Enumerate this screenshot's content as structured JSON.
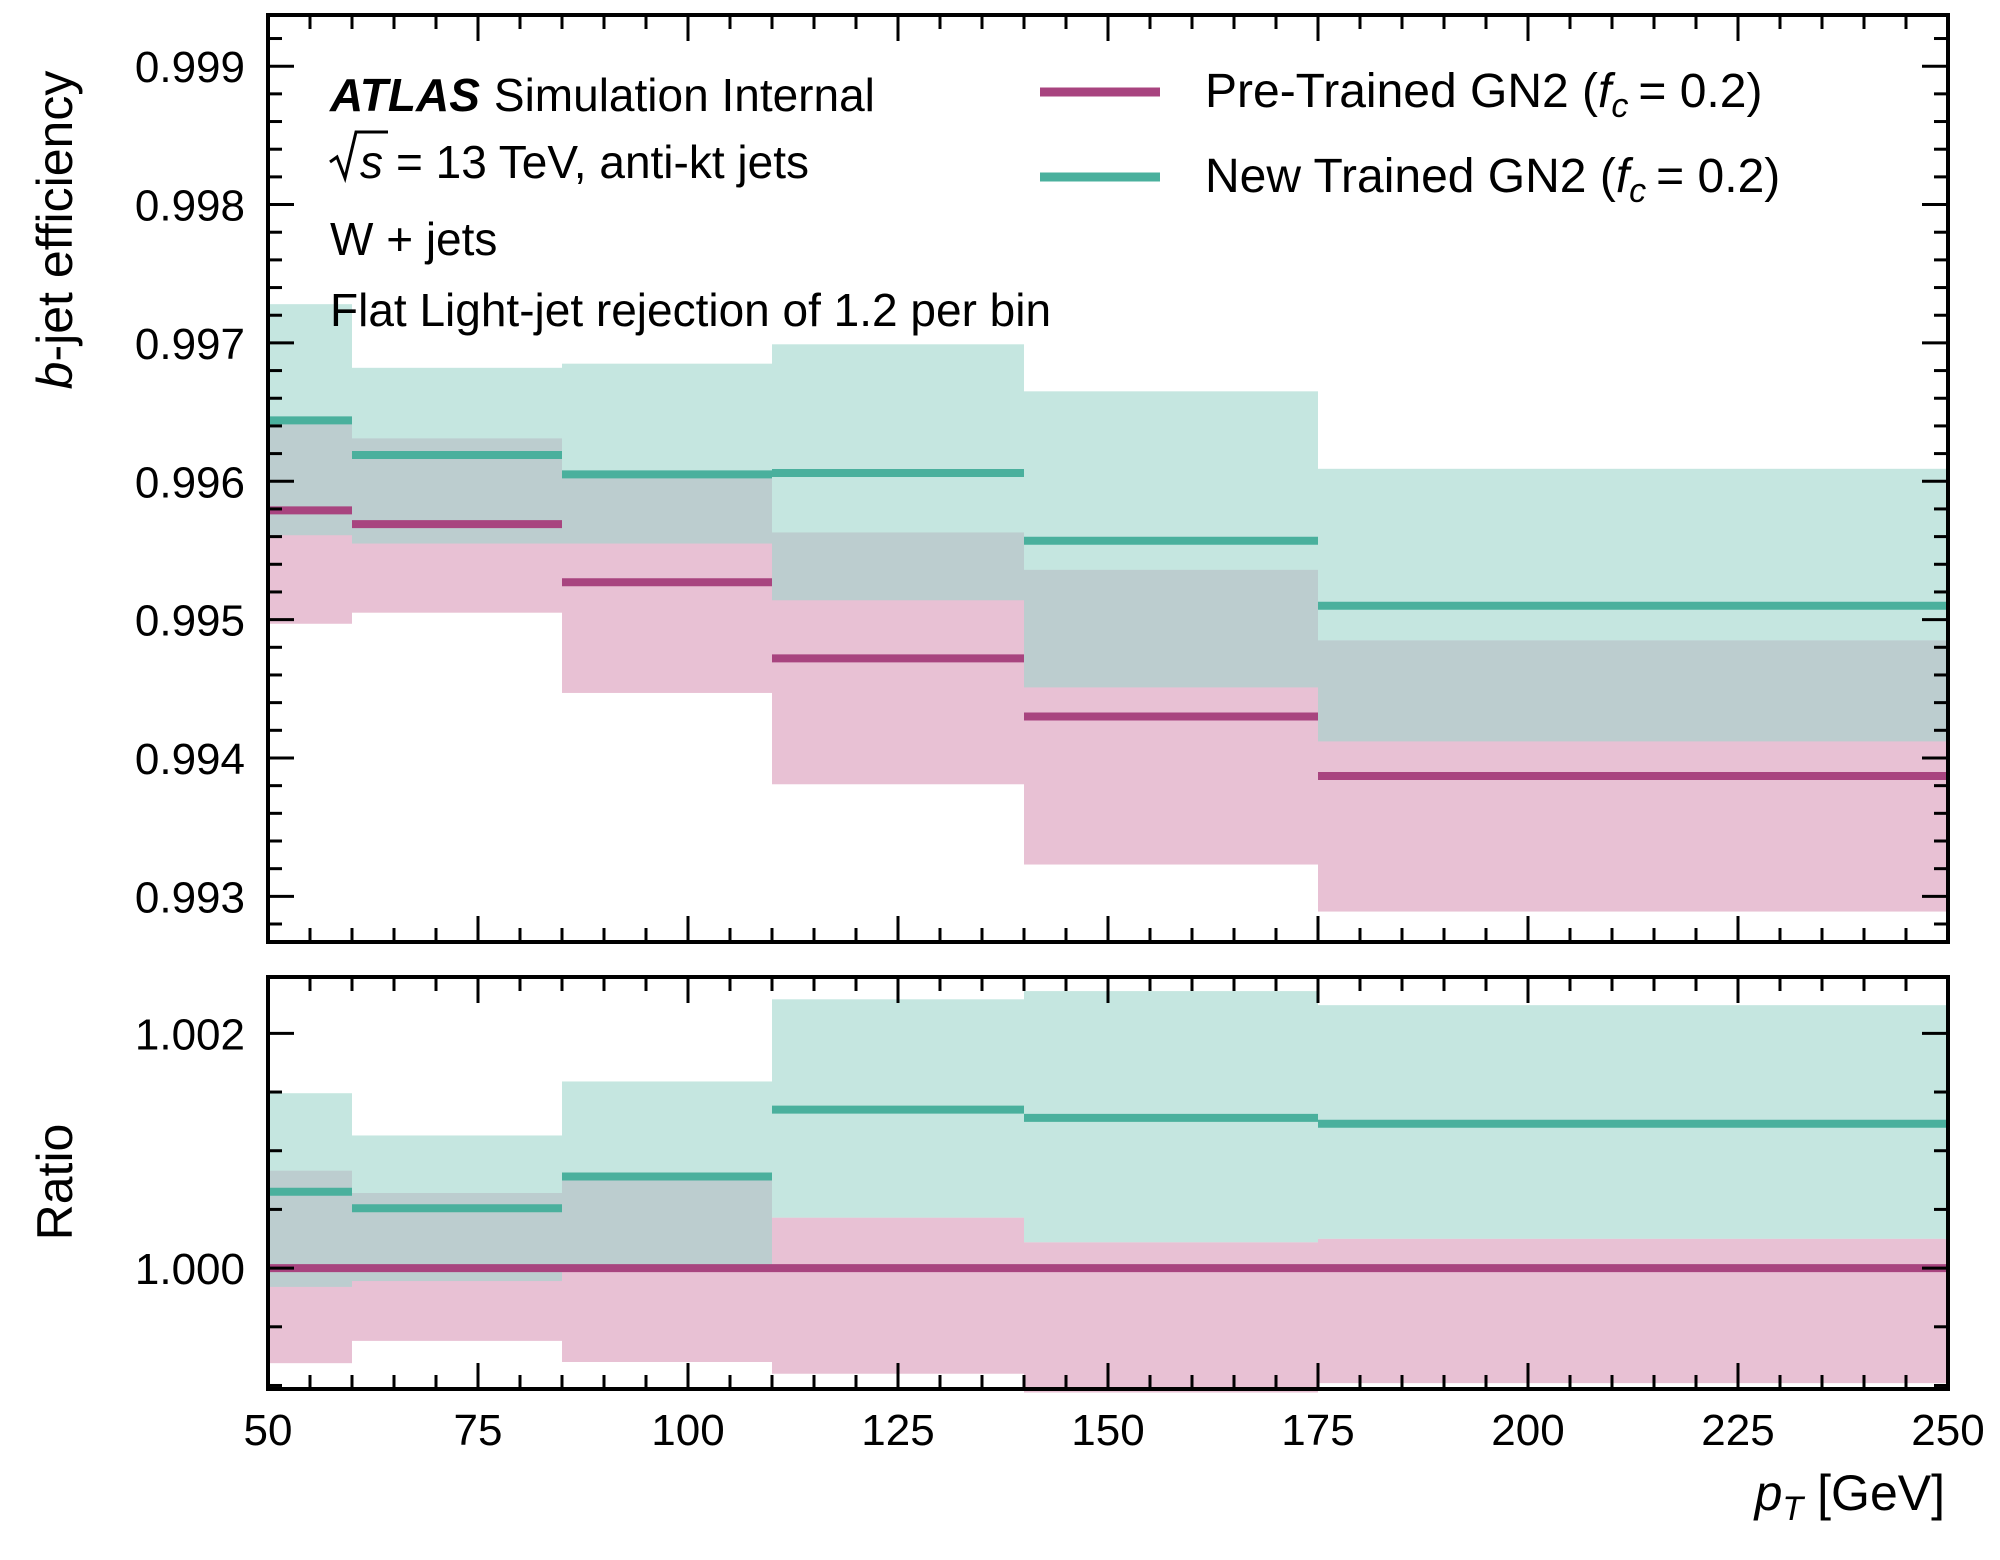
{
  "chart_data": {
    "type": "line",
    "style": "step",
    "bin_edges": [
      50,
      60,
      85,
      110,
      140,
      175,
      250
    ],
    "xlabel_italic": "p",
    "xlabel_sub": "T",
    "xlabel_unit": "[GeV]",
    "xlim": [
      50,
      250
    ],
    "xticks": [
      "50",
      "75",
      "100",
      "125",
      "150",
      "175",
      "200",
      "225",
      "250"
    ],
    "atlas_label": "ATLAS",
    "atlas_suffix": "Simulation Internal",
    "energy_label": "= 13 TeV, anti-kt jets",
    "sample_label": "W + jets",
    "rejection_label": "Flat Light-jet rejection of 1.2 per bin",
    "series": [
      {
        "name": "Pre-Trained GN2",
        "name_suffix": "= 0.2)",
        "color": "#a8447f",
        "band_color": "#d997b8",
        "values": [
          0.99579,
          0.99569,
          0.99527,
          0.99472,
          0.9943,
          0.99387
        ],
        "band_low": [
          0.99497,
          0.99505,
          0.99447,
          0.99381,
          0.99323,
          0.99289
        ],
        "band_high": [
          0.99646,
          0.99631,
          0.99605,
          0.99563,
          0.99536,
          0.99485
        ],
        "ratio": [
          1.0,
          1.0,
          1.0,
          1.0,
          1.0,
          1.0
        ],
        "ratio_low": [
          0.99919,
          0.99938,
          0.9992,
          0.9991,
          0.99894,
          0.99902
        ],
        "ratio_high": [
          1.00083,
          1.00064,
          1.00075,
          1.00043,
          1.00022,
          1.00025
        ]
      },
      {
        "name": "New Trained GN2",
        "name_suffix": "= 0.2)",
        "color": "#4ab09d",
        "band_color": "#9fd6cb",
        "values": [
          0.99644,
          0.99619,
          0.99605,
          0.99606,
          0.99557,
          0.9951
        ],
        "band_low": [
          0.99561,
          0.99555,
          0.99555,
          0.99514,
          0.99451,
          0.99412
        ],
        "band_high": [
          0.99728,
          0.99682,
          0.99685,
          0.99699,
          0.99665,
          0.99609
        ],
        "ratio": [
          1.00065,
          1.00051,
          1.00078,
          1.00135,
          1.00128,
          1.00123
        ],
        "ratio_low": [
          0.99984,
          0.99989,
          1.0,
          1.00043,
          1.00022,
          1.00025
        ],
        "ratio_high": [
          1.00149,
          1.00113,
          1.00159,
          1.00229,
          1.00236,
          1.00224
        ]
      }
    ],
    "top_panel": {
      "ylabel_italic": "b",
      "ylabel_rest": "-jet efficiency",
      "ylim": [
        0.99267,
        0.99937
      ],
      "yticks": [
        "0.999",
        "0.998",
        "0.997",
        "0.996",
        "0.995",
        "0.994",
        "0.993"
      ]
    },
    "bottom_panel": {
      "ylabel": "Ratio",
      "ylim": [
        0.99897,
        1.00248
      ],
      "yticks": [
        "1.002",
        "1.000"
      ]
    },
    "legend_placement": "top-right",
    "grid": false
  }
}
